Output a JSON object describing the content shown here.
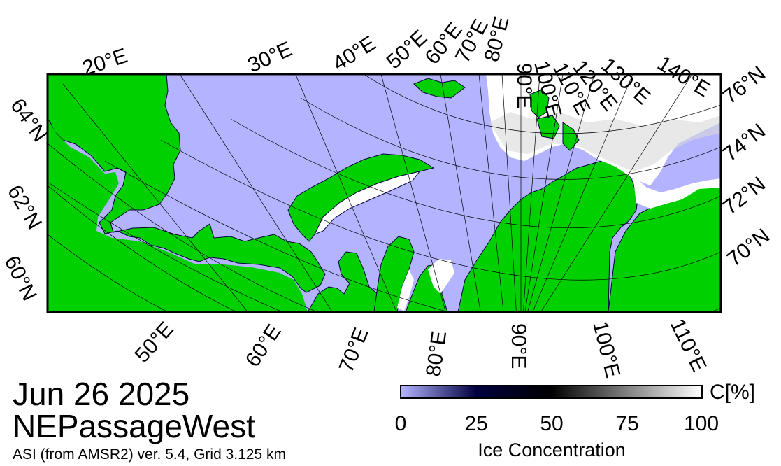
{
  "date": "Jun 26 2025",
  "region": "NEPassageWest",
  "product": "ASI (from AMSR2) ver. 5.4,  Grid 3.125 km",
  "colorbar": {
    "unit": "C[%]",
    "title": "Ice Concentration",
    "ticks": [
      "0",
      "25",
      "50",
      "75",
      "100"
    ],
    "colors": {
      "low": "#b3b3ff",
      "dark": "#000040",
      "mid": "#000000",
      "high": "#ffffff"
    }
  },
  "map": {
    "colors": {
      "land": "#00d000",
      "water": "#b3b3ff",
      "ice": "#ffffff",
      "frame": "#000000"
    },
    "top_lon_labels": [
      "20°E",
      "30°E",
      "40°E",
      "50°E",
      "60°E",
      "70°E",
      "80°E",
      "90°E",
      "100°E",
      "110°E",
      "120°E",
      "130°E",
      "140°E"
    ],
    "bottom_lon_labels": [
      "50°E",
      "60°E",
      "70°E",
      "80°E",
      "90°E",
      "100°E",
      "110°E"
    ],
    "left_lat_labels": [
      "64°N",
      "62°N",
      "60°N"
    ],
    "right_lat_labels": [
      "76°N",
      "74°N",
      "72°N",
      "70°N"
    ]
  }
}
